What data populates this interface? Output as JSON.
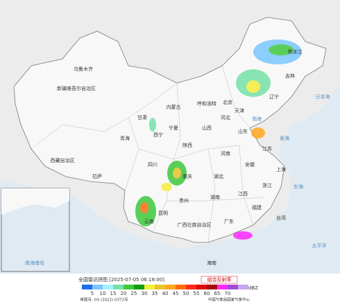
{
  "title": "全国雷达拼图 [2025-07-05 06:18:00]",
  "product": "组合反射率",
  "unit": "dBZ",
  "legend": {
    "colors": [
      "#1e6eeb",
      "#7ac7ff",
      "#a6f0ff",
      "#76e1a8",
      "#3ec93e",
      "#109e10",
      "#f4ee3b",
      "#e6c52b",
      "#ffa81e",
      "#ff6e0d",
      "#ff2a1a",
      "#d90e0e",
      "#a50d0d",
      "#ff28ff",
      "#a14ad6",
      "#c9a6f2"
    ],
    "values": [
      5,
      10,
      15,
      20,
      25,
      30,
      35,
      40,
      45,
      50,
      55,
      60,
      65,
      70
    ]
  },
  "footer": {
    "approval": "审图号: GS (2022) 0372号",
    "agency": "中国气象局国家气象中心"
  },
  "labels": {
    "xinjiang": "新疆维吾尔自治区",
    "wulumuqi": "乌鲁木齐",
    "xizang": "西藏自治区",
    "lasa": "拉萨",
    "qinghai": "青海",
    "xining": "西宁",
    "gansu": "甘肃",
    "neimenggu": "内蒙古",
    "huhehaote": "呼和浩特",
    "heilongjiang": "黑龙江",
    "jilin": "吉林",
    "liaoning": "辽宁",
    "beijing": "北京",
    "tianjin": "天津",
    "hebei": "河北",
    "shanxi": "山西",
    "shandong": "山东",
    "ningxia": "宁夏",
    "shaanxi": "陕西",
    "henan": "河南",
    "sichuan": "四川",
    "chongqing": "重庆",
    "hubei": "湖北",
    "anhui": "安徽",
    "jiangsu": "江苏",
    "shanghai": "上海",
    "zhejiang": "浙江",
    "hunan": "湖南",
    "jiangxi": "江西",
    "guizhou": "贵州",
    "yunnan": "云南",
    "kunming": "昆明",
    "guangxi": "广西壮族自治区",
    "guangdong": "广东",
    "fujian": "福建",
    "taiwan": "台湾",
    "hainan": "海南",
    "bohai": "渤海",
    "huanghai": "黄海",
    "donghai": "东海",
    "taipingyang": "太平洋",
    "riben": "日本海",
    "nanhai": "南海诸岛"
  }
}
